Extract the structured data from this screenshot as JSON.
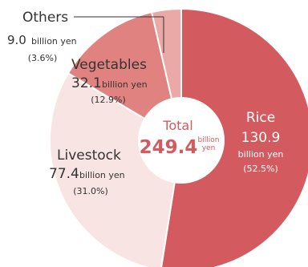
{
  "chart_data": {
    "type": "pie",
    "title": "",
    "center_label": {
      "title": "Total",
      "value": "249.4",
      "unit_line1": "billion",
      "unit_line2": "yen"
    },
    "unit": "billion yen",
    "slices": [
      {
        "key": "rice",
        "label": "Rice",
        "value": 130.9,
        "value_text": "130.9",
        "unit_text": "billion yen",
        "percent": 52.5,
        "percent_text": "(52.5%)",
        "color": "#d35a5e",
        "label_color": "#ffffff"
      },
      {
        "key": "livestock",
        "label": "Livestock",
        "value": 77.4,
        "value_text": "77.4",
        "unit_text": "billion yen",
        "percent": 31.0,
        "percent_text": "(31.0%)",
        "color": "#f8e4e2",
        "label_color": "#333333"
      },
      {
        "key": "vegetables",
        "label": "Vegetables",
        "value": 32.1,
        "value_text": "32.1",
        "unit_text": "billion yen",
        "percent": 12.9,
        "percent_text": "(12.9%)",
        "color": "#e08380",
        "label_color": "#333333"
      },
      {
        "key": "others",
        "label": "Others",
        "value": 9.0,
        "value_text": "9.0",
        "unit_text": "billion yen",
        "percent": 3.6,
        "percent_text": "(3.6%)",
        "color": "#eaa9a6",
        "label_color": "#333333"
      }
    ]
  }
}
